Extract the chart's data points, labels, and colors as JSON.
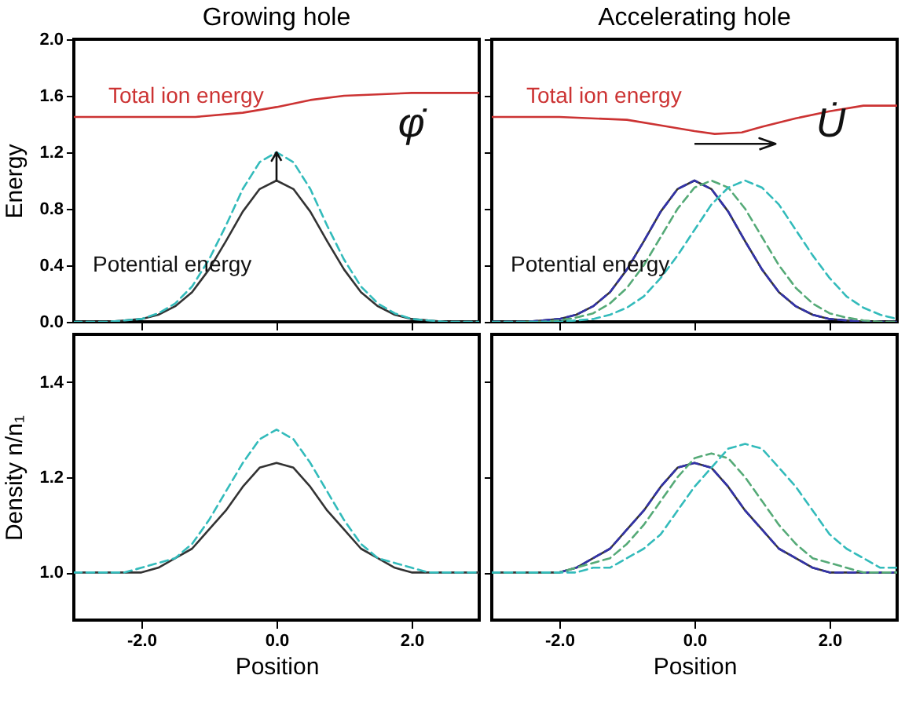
{
  "chart_data": [
    {
      "type": "line",
      "title": "Growing hole",
      "ylabel": "Energy",
      "xlim": [
        -3,
        3
      ],
      "xticks": [
        -2,
        0,
        2
      ],
      "ylim": [
        0,
        2
      ],
      "yticks": [
        {
          "value": 0,
          "label": "0.0"
        },
        {
          "value": 0.4,
          "label": "0.4"
        },
        {
          "value": 0.8,
          "label": "0.8"
        },
        {
          "value": 1.2,
          "label": "1.2"
        },
        {
          "value": 1.6,
          "label": "1.6"
        },
        {
          "value": 2,
          "label": "2.0"
        }
      ],
      "tick_labels": "y",
      "x": [
        -3,
        -2.75,
        -2.5,
        -2.25,
        -2,
        -1.75,
        -1.5,
        -1.25,
        -1,
        -0.75,
        -0.5,
        -0.25,
        0,
        0.25,
        0.5,
        0.75,
        1,
        1.25,
        1.5,
        1.75,
        2,
        2.25,
        2.5,
        2.75,
        3
      ],
      "series": [
        {
          "color": "#333333",
          "line_style": "solid",
          "values": [
            0,
            0,
            0,
            0.01,
            0.02,
            0.05,
            0.11,
            0.21,
            0.37,
            0.57,
            0.78,
            0.94,
            1,
            0.94,
            0.78,
            0.57,
            0.37,
            0.21,
            0.11,
            0.05,
            0.02,
            0.01,
            0,
            0,
            0
          ]
        },
        {
          "color": "#33bbbb",
          "line_style": "dashed",
          "values": [
            0,
            0,
            0,
            0.01,
            0.02,
            0.06,
            0.13,
            0.25,
            0.44,
            0.68,
            0.94,
            1.13,
            1.2,
            1.13,
            0.94,
            0.68,
            0.44,
            0.25,
            0.13,
            0.06,
            0.02,
            0.01,
            0,
            0,
            0
          ]
        },
        {
          "name": "Total ion energy",
          "color": "#cc3333",
          "line_style": "solid",
          "x": [
            -3,
            -2,
            -1.2,
            -0.5,
            0,
            0.5,
            1,
            1.5,
            2,
            3
          ],
          "values": [
            1.45,
            1.45,
            1.45,
            1.48,
            1.52,
            1.57,
            1.6,
            1.61,
            1.62,
            1.62
          ]
        }
      ],
      "annotations": [
        "Potential energy",
        "φ̇"
      ]
    },
    {
      "type": "line",
      "title": "Accelerating hole",
      "xlim": [
        -3,
        3
      ],
      "xticks": [
        -2,
        0,
        2
      ],
      "ylim": [
        0,
        2
      ],
      "yticks": [
        0,
        0.4,
        0.8,
        1.2,
        1.6,
        2
      ],
      "tick_labels": false,
      "x": [
        -3,
        -2.75,
        -2.5,
        -2.25,
        -2,
        -1.75,
        -1.5,
        -1.25,
        -1,
        -0.75,
        -0.5,
        -0.25,
        0,
        0.25,
        0.5,
        0.75,
        1,
        1.25,
        1.5,
        1.75,
        2,
        2.25,
        2.5,
        2.75,
        3
      ],
      "series": [
        {
          "color": "#333333",
          "line_style": "solid",
          "values": [
            0,
            0,
            0,
            0.01,
            0.02,
            0.05,
            0.11,
            0.21,
            0.37,
            0.57,
            0.78,
            0.94,
            1,
            0.94,
            0.78,
            0.57,
            0.37,
            0.21,
            0.11,
            0.05,
            0.02,
            0.01,
            0,
            0,
            0
          ]
        },
        {
          "color": "#3333aa",
          "line_style": "dashed",
          "values": [
            0,
            0,
            0,
            0.01,
            0.02,
            0.05,
            0.11,
            0.21,
            0.37,
            0.57,
            0.78,
            0.94,
            1,
            0.94,
            0.78,
            0.57,
            0.37,
            0.21,
            0.11,
            0.05,
            0.02,
            0.01,
            0,
            0,
            0
          ]
        },
        {
          "color": "#55aa77",
          "line_style": "dashed",
          "values": [
            null,
            null,
            0,
            0,
            0.01,
            0.03,
            0.06,
            0.13,
            0.24,
            0.4,
            0.6,
            0.8,
            0.95,
            1,
            0.95,
            0.8,
            0.6,
            0.4,
            0.24,
            0.13,
            0.06,
            0.03,
            0.01,
            0,
            0
          ]
        },
        {
          "color": "#33bbbb",
          "line_style": "dashed",
          "values": [
            0,
            0,
            0,
            0,
            0,
            0.01,
            0.02,
            0.05,
            0.1,
            0.18,
            0.31,
            0.47,
            0.65,
            0.83,
            0.95,
            1,
            0.95,
            0.83,
            0.65,
            0.47,
            0.31,
            0.18,
            0.1,
            0.05,
            0.02
          ]
        },
        {
          "name": "Total ion energy",
          "color": "#cc3333",
          "line_style": "solid",
          "x": [
            -3,
            -2,
            -1,
            -0.5,
            0,
            0.3,
            0.7,
            1,
            1.5,
            2,
            2.5,
            3
          ],
          "values": [
            1.45,
            1.45,
            1.43,
            1.39,
            1.35,
            1.33,
            1.34,
            1.38,
            1.44,
            1.49,
            1.53,
            1.53
          ]
        }
      ],
      "annotations": [
        "Potential energy",
        "U̇"
      ]
    },
    {
      "type": "line",
      "xlabel": "Position",
      "ylabel": "Density n/n₁",
      "xlim": [
        -3,
        3
      ],
      "xticks": [
        {
          "value": -2,
          "label": "-2.0"
        },
        {
          "value": 0,
          "label": "0.0"
        },
        {
          "value": 2,
          "label": "2.0"
        }
      ],
      "ylim": [
        0.9,
        1.5
      ],
      "yticks": [
        {
          "value": 1,
          "label": "1.0"
        },
        {
          "value": 1.2,
          "label": "1.2"
        },
        {
          "value": 1.4,
          "label": "1.4"
        }
      ],
      "x": [
        -3,
        -2.75,
        -2.5,
        -2.25,
        -2,
        -1.75,
        -1.5,
        -1.25,
        -1,
        -0.75,
        -0.5,
        -0.25,
        0,
        0.25,
        0.5,
        0.75,
        1,
        1.25,
        1.5,
        1.75,
        2,
        2.25,
        2.5,
        2.75,
        3
      ],
      "series": [
        {
          "color": "#333333",
          "line_style": "solid",
          "values": [
            1,
            1,
            1,
            1,
            1,
            1.01,
            1.03,
            1.05,
            1.09,
            1.13,
            1.18,
            1.22,
            1.23,
            1.22,
            1.18,
            1.13,
            1.09,
            1.05,
            1.03,
            1.01,
            1,
            1,
            1,
            1,
            1
          ]
        },
        {
          "color": "#33bbbb",
          "line_style": "dashed",
          "values": [
            1,
            1,
            1,
            1,
            1.01,
            1.02,
            1.03,
            1.06,
            1.11,
            1.17,
            1.23,
            1.28,
            1.3,
            1.28,
            1.23,
            1.17,
            1.11,
            1.06,
            1.03,
            1.02,
            1.01,
            1,
            1,
            1,
            1
          ]
        }
      ]
    },
    {
      "type": "line",
      "xlabel": "Position",
      "xlim": [
        -3,
        3
      ],
      "xticks": [
        {
          "value": -2,
          "label": "-2.0"
        },
        {
          "value": 0,
          "label": "0.0"
        },
        {
          "value": 2,
          "label": "2.0"
        }
      ],
      "ylim": [
        0.9,
        1.5
      ],
      "yticks": [
        1,
        1.2,
        1.4
      ],
      "tick_labels": "x",
      "x": [
        -3,
        -2.75,
        -2.5,
        -2.25,
        -2,
        -1.75,
        -1.5,
        -1.25,
        -1,
        -0.75,
        -0.5,
        -0.25,
        0,
        0.25,
        0.5,
        0.75,
        1,
        1.25,
        1.5,
        1.75,
        2,
        2.25,
        2.5,
        2.75,
        3
      ],
      "series": [
        {
          "color": "#333333",
          "line_style": "solid",
          "values": [
            1,
            1,
            1,
            1,
            1,
            1.01,
            1.03,
            1.05,
            1.09,
            1.13,
            1.18,
            1.22,
            1.23,
            1.22,
            1.18,
            1.13,
            1.09,
            1.05,
            1.03,
            1.01,
            1,
            1,
            1,
            1,
            1
          ]
        },
        {
          "color": "#3333aa",
          "line_style": "dashed",
          "values": [
            null,
            null,
            null,
            null,
            1,
            1.01,
            1.03,
            1.05,
            1.09,
            1.13,
            1.18,
            1.22,
            1.23,
            1.22,
            1.18,
            1.13,
            1.09,
            1.05,
            1.03,
            1.01,
            1,
            1,
            1,
            1,
            1
          ]
        },
        {
          "color": "#55aa77",
          "line_style": "dashed",
          "values": [
            1,
            1,
            1,
            1,
            1,
            1.01,
            1.02,
            1.03,
            1.06,
            1.1,
            1.15,
            1.2,
            1.24,
            1.25,
            1.24,
            1.2,
            1.15,
            1.1,
            1.06,
            1.03,
            1.02,
            1.01,
            1,
            1,
            1
          ]
        },
        {
          "color": "#33bbbb",
          "line_style": "dashed",
          "values": [
            1,
            1,
            1,
            1,
            1,
            1,
            1.01,
            1.01,
            1.03,
            1.05,
            1.08,
            1.13,
            1.18,
            1.22,
            1.26,
            1.27,
            1.26,
            1.22,
            1.18,
            1.13,
            1.08,
            1.05,
            1.03,
            1.01,
            1.01
          ]
        }
      ]
    }
  ]
}
